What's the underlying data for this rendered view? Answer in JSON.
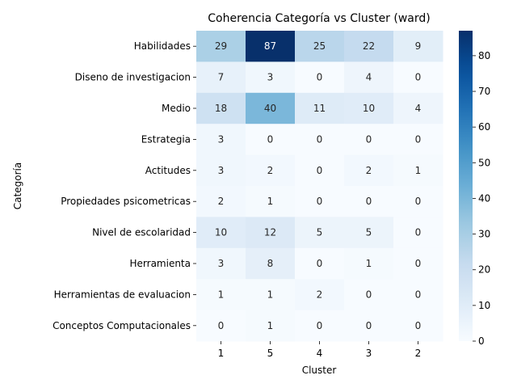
{
  "chart_data": {
    "type": "heatmap",
    "title": "Coherencia Categoría vs Cluster (ward)",
    "xlabel": "Cluster",
    "ylabel": "Categoría",
    "x_categories": [
      "1",
      "5",
      "4",
      "3",
      "2"
    ],
    "y_categories": [
      "Habilidades",
      "Diseno de investigacion",
      "Medio",
      "Estrategia",
      "Actitudes",
      "Propiedades psicometricas",
      "Nivel de escolaridad",
      "Herramienta",
      "Herramientas de evaluacion",
      "Conceptos Computacionales"
    ],
    "values": [
      [
        29,
        87,
        25,
        22,
        9
      ],
      [
        7,
        3,
        0,
        4,
        0
      ],
      [
        18,
        40,
        11,
        10,
        4
      ],
      [
        3,
        0,
        0,
        0,
        0
      ],
      [
        3,
        2,
        0,
        2,
        1
      ],
      [
        2,
        1,
        0,
        0,
        0
      ],
      [
        10,
        12,
        5,
        5,
        0
      ],
      [
        3,
        8,
        0,
        1,
        0
      ],
      [
        1,
        1,
        2,
        0,
        0
      ],
      [
        0,
        1,
        0,
        0,
        0
      ]
    ],
    "colormap": "Blues",
    "vmin": 0,
    "vmax": 87,
    "colorbar_ticks": [
      0,
      10,
      20,
      30,
      40,
      50,
      60,
      70,
      80
    ],
    "annotated": true,
    "grid": false
  }
}
